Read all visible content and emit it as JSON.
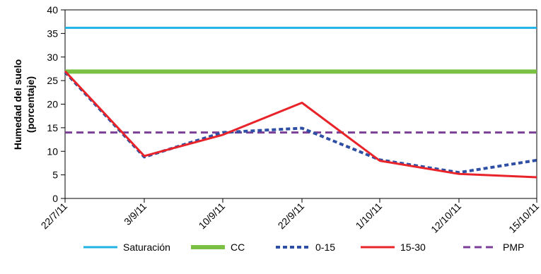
{
  "chart_data": {
    "type": "line",
    "title": "",
    "xlabel": "",
    "ylabel_lines": [
      "Humedad del suelo",
      "(porcentaje)"
    ],
    "ylim": [
      0,
      40
    ],
    "yticks": [
      "0",
      "5",
      "10",
      "15",
      "20",
      "25",
      "30",
      "35",
      "40"
    ],
    "grid": false,
    "legend_position": "bottom",
    "categories": [
      "22/7/11",
      "3/9/11",
      "10/9/11",
      "22/9/11",
      "1/10/11",
      "12/10/11",
      "15/10/11"
    ],
    "series": [
      {
        "name": "Saturación",
        "color": "#1fb3e6",
        "style": "solid",
        "values": [
          36.2,
          36.2,
          36.2,
          36.2,
          36.2,
          36.2,
          36.2
        ]
      },
      {
        "name": "CC",
        "color": "#7ac143",
        "style": "solid-thick",
        "values": [
          26.9,
          26.9,
          26.9,
          26.9,
          26.9,
          26.9,
          26.9
        ]
      },
      {
        "name": "0-15",
        "color": "#2e4fa3",
        "style": "dotted",
        "values": [
          26.8,
          8.8,
          14.0,
          14.9,
          8.2,
          5.5,
          8.1
        ]
      },
      {
        "name": "15-30",
        "color": "#e8242a",
        "style": "solid",
        "values": [
          27.0,
          9.0,
          13.5,
          20.3,
          8.0,
          5.2,
          4.5
        ]
      },
      {
        "name": "PMP",
        "color": "#7b3f98",
        "style": "dashed",
        "values": [
          14.0,
          14.0,
          14.0,
          14.0,
          14.0,
          14.0,
          14.0
        ]
      }
    ]
  }
}
